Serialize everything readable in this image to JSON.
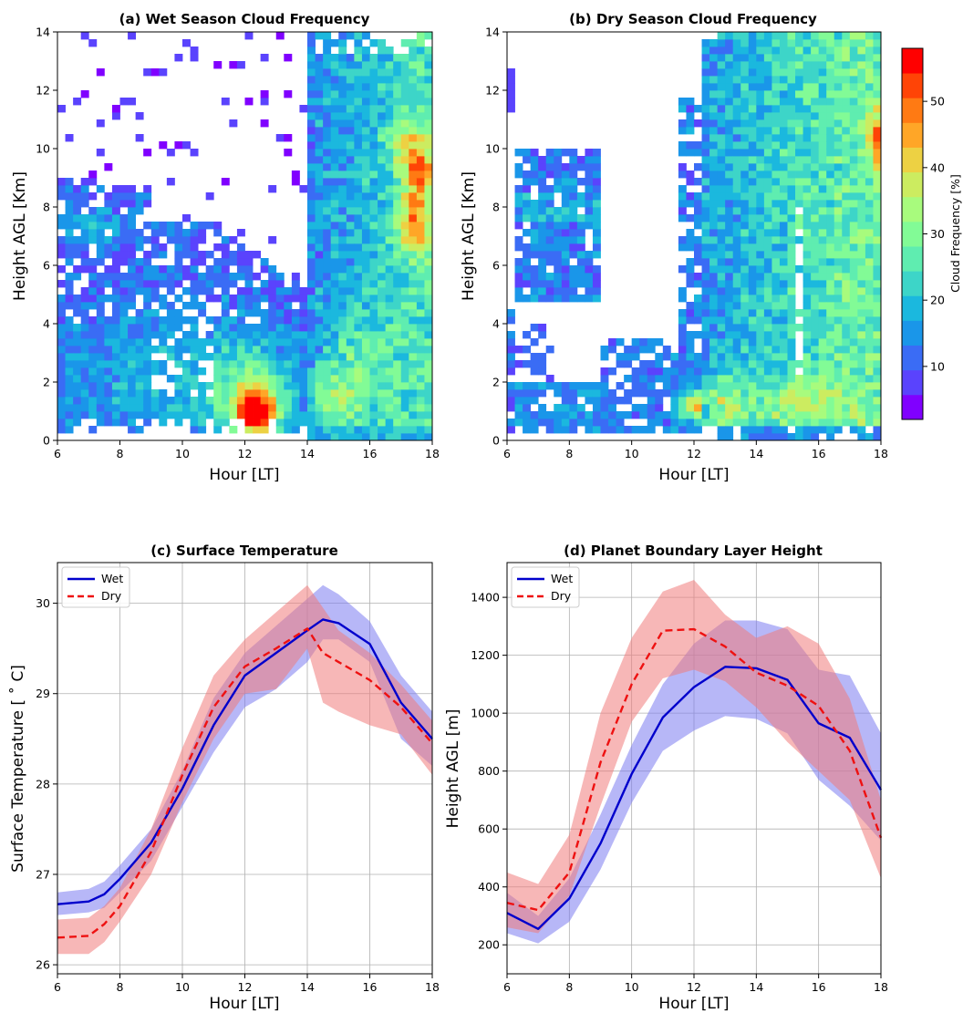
{
  "chart_data": [
    {
      "type": "heatmap",
      "panel": "a",
      "title": "(a)   Wet Season Cloud Frequency",
      "xlabel": "Hour [LT]",
      "ylabel": "Height AGL [Km]",
      "xlim": [
        6,
        18
      ],
      "ylim": [
        0,
        14
      ],
      "xticks": [
        6,
        8,
        10,
        12,
        14,
        16,
        18
      ],
      "yticks": [
        0,
        2,
        4,
        6,
        8,
        10,
        12,
        14
      ],
      "colormap": "rainbow",
      "clim": [
        2,
        58
      ],
      "features": [
        {
          "note": "peak near 12.4 LT at 1 km, ~50%",
          "hour": 12.4,
          "height_km": 1.0,
          "value": 50
        },
        {
          "note": "upper-level maximum after 17 LT",
          "hour": 17.6,
          "height_km": 9.2,
          "value": 45
        },
        {
          "note": "upper-level maximum after 17 LT",
          "hour": 17.4,
          "height_km": 7.2,
          "value": 43
        }
      ]
    },
    {
      "type": "heatmap",
      "panel": "b",
      "title": "(b)   Dry Season Cloud Frequency",
      "xlabel": "Hour [LT]",
      "ylabel": "Height AGL [Km]",
      "xlim": [
        6,
        18
      ],
      "ylim": [
        0,
        14
      ],
      "xticks": [
        6,
        8,
        10,
        12,
        14,
        16,
        18
      ],
      "yticks": [
        0,
        2,
        4,
        6,
        8,
        10,
        12,
        14
      ],
      "colormap": "rainbow",
      "clim": [
        2,
        58
      ],
      "features": [
        {
          "note": "peak near 12.2 LT at 1.2 km, ~45%",
          "hour": 12.2,
          "height_km": 1.2,
          "value": 45
        },
        {
          "note": "upper-level maximum at 18 LT",
          "hour": 17.9,
          "height_km": 10.3,
          "value": 45
        }
      ]
    },
    {
      "type": "line",
      "panel": "c",
      "title": "(c)      Surface Temperature",
      "xlabel": "Hour [LT]",
      "ylabel": "Surface Temperature [ ˚ C]",
      "xlim": [
        6,
        18
      ],
      "ylim": [
        25.9,
        30.45
      ],
      "xticks": [
        6,
        8,
        10,
        12,
        14,
        16,
        18
      ],
      "yticks": [
        26,
        27,
        28,
        29,
        30
      ],
      "grid": true,
      "legend": "top-left",
      "x": [
        6,
        7,
        7.5,
        8,
        9,
        10,
        11,
        12,
        13,
        14,
        14.5,
        15,
        16,
        17,
        18
      ],
      "series": [
        {
          "name": "Wet",
          "color": "#0000cc",
          "style": "solid",
          "values": [
            26.67,
            26.7,
            26.78,
            26.95,
            27.35,
            27.95,
            28.65,
            29.2,
            29.45,
            29.7,
            29.82,
            29.78,
            29.55,
            28.9,
            28.5
          ],
          "lower": [
            26.55,
            26.58,
            26.63,
            26.8,
            27.15,
            27.75,
            28.35,
            28.85,
            29.05,
            29.35,
            29.6,
            29.6,
            29.35,
            28.5,
            28.2
          ],
          "upper": [
            26.8,
            26.84,
            26.92,
            27.1,
            27.5,
            28.15,
            28.95,
            29.45,
            29.75,
            30.05,
            30.2,
            30.1,
            29.8,
            29.2,
            28.8
          ]
        },
        {
          "name": "Dry",
          "color": "#ee1111",
          "style": "dashed",
          "values": [
            26.3,
            26.32,
            26.45,
            26.65,
            27.25,
            28.1,
            28.85,
            29.3,
            29.5,
            29.72,
            29.45,
            29.35,
            29.15,
            28.85,
            28.45
          ],
          "lower": [
            26.12,
            26.12,
            26.25,
            26.48,
            27.0,
            27.8,
            28.5,
            29.0,
            29.05,
            29.5,
            28.9,
            28.8,
            28.65,
            28.55,
            28.1
          ],
          "upper": [
            26.5,
            26.52,
            26.65,
            26.85,
            27.5,
            28.4,
            29.2,
            29.6,
            29.9,
            30.2,
            29.95,
            29.7,
            29.45,
            29.1,
            28.7
          ]
        }
      ]
    },
    {
      "type": "line",
      "panel": "d",
      "title": "(d)    Planet Boundary Layer Height",
      "xlabel": "Hour [LT]",
      "ylabel": "Height AGL [m]",
      "xlim": [
        6,
        18
      ],
      "ylim": [
        100,
        1520
      ],
      "xticks": [
        6,
        8,
        10,
        12,
        14,
        16,
        18
      ],
      "yticks": [
        200,
        400,
        600,
        800,
        1000,
        1200,
        1400
      ],
      "grid": true,
      "legend": "top-left",
      "x": [
        6,
        7,
        8,
        9,
        10,
        11,
        12,
        13,
        14,
        15,
        16,
        17,
        18
      ],
      "series": [
        {
          "name": "Wet",
          "color": "#0000cc",
          "style": "solid",
          "values": [
            310,
            255,
            360,
            550,
            790,
            985,
            1090,
            1160,
            1155,
            1115,
            965,
            915,
            735
          ],
          "lower": [
            240,
            205,
            280,
            460,
            690,
            870,
            940,
            990,
            980,
            930,
            770,
            680,
            560
          ],
          "upper": [
            380,
            300,
            430,
            650,
            890,
            1100,
            1240,
            1320,
            1320,
            1290,
            1150,
            1130,
            930
          ]
        },
        {
          "name": "Dry",
          "color": "#ee1111",
          "style": "dashed",
          "values": [
            345,
            320,
            450,
            830,
            1100,
            1285,
            1290,
            1230,
            1140,
            1095,
            1025,
            870,
            570
          ],
          "lower": [
            260,
            240,
            370,
            680,
            970,
            1120,
            1150,
            1110,
            1020,
            900,
            800,
            700,
            430
          ],
          "upper": [
            450,
            410,
            580,
            1000,
            1260,
            1420,
            1460,
            1340,
            1260,
            1300,
            1240,
            1050,
            700
          ]
        }
      ]
    }
  ],
  "colorbar": {
    "label": "Cloud Frequency [%]",
    "ticks": [
      10,
      20,
      30,
      40,
      50
    ],
    "colors": [
      "#8000ff",
      "#5a43fd",
      "#3a6cf5",
      "#1a96e9",
      "#1bb8de",
      "#3dd5c8",
      "#5fedb0",
      "#82fb96",
      "#a8fb7d",
      "#ccec60",
      "#edd143",
      "#ffa627",
      "#ff7a13",
      "#ff4406",
      "#ff0000"
    ]
  }
}
